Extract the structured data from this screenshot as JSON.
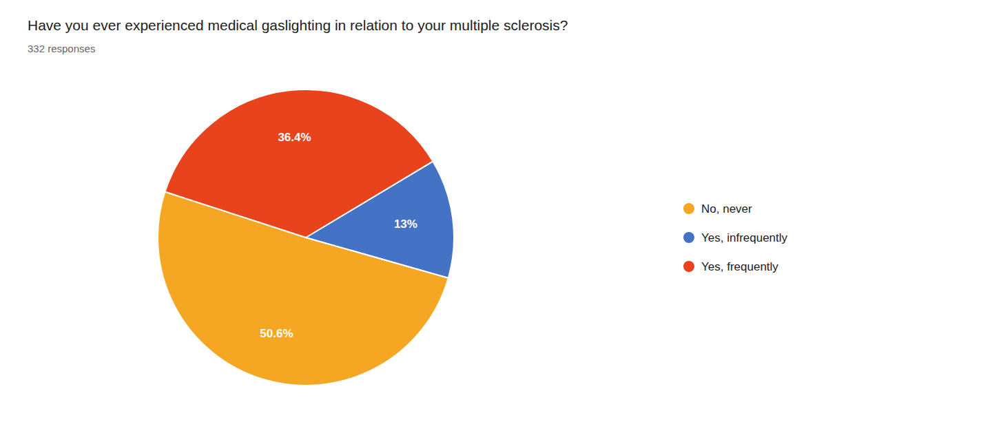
{
  "chart_data": {
    "type": "pie",
    "title": "Have you ever experienced medical gaslighting in relation to your multiple sclerosis?",
    "subtitle": "332 responses",
    "categories": [
      "No, never",
      "Yes, infrequently",
      "Yes, frequently"
    ],
    "values": [
      50.6,
      13.0,
      36.4
    ],
    "value_labels": [
      "50.6%",
      "13%",
      "36.4%"
    ],
    "colors": [
      "#F5A623",
      "#4472C4",
      "#E8431C"
    ],
    "data_labels": true,
    "legend": "right"
  }
}
